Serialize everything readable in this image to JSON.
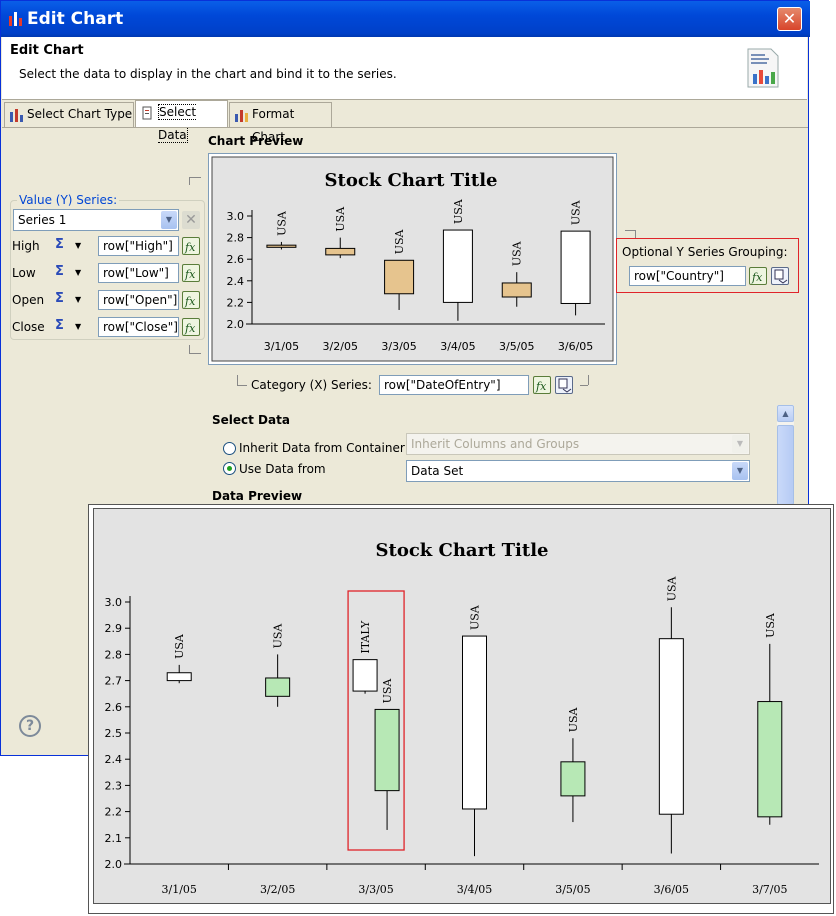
{
  "window": {
    "title": "Edit Chart",
    "close_glyph": "✕"
  },
  "header": {
    "title": "Edit Chart",
    "description": "Select the data to display in the chart and bind it to the series."
  },
  "tabs": [
    {
      "label": "Select Chart Type",
      "icon": "bar-chart-icon"
    },
    {
      "label": "Select Data",
      "icon": "data-icon"
    },
    {
      "label": "Format Chart",
      "icon": "format-chart-icon"
    }
  ],
  "chart_preview": {
    "label": "Chart Preview"
  },
  "value_series": {
    "label": "Value (Y) Series:",
    "selected": "Series 1",
    "rows": [
      {
        "label": "High",
        "value": "row[\"High\"]"
      },
      {
        "label": "Low",
        "value": "row[\"Low\"]"
      },
      {
        "label": "Open",
        "value": "row[\"Open\"]"
      },
      {
        "label": "Close",
        "value": "row[\"Close\"]"
      }
    ]
  },
  "grouping": {
    "label": "Optional Y Series Grouping:",
    "value": "row[\"Country\"]"
  },
  "category": {
    "label": "Category (X) Series:",
    "value": "row[\"DateOfEntry\"]"
  },
  "select_data": {
    "label": "Select Data",
    "inherit_label": "Inherit Data from Container",
    "inherit_value": "Inherit Columns and Groups",
    "use_label": "Use Data from",
    "use_value": "Data Set"
  },
  "data_preview": {
    "label": "Data Preview"
  },
  "help_glyph": "?",
  "chart_data": [
    {
      "type": "stock",
      "title": "Stock Chart Title",
      "y_ticks": [
        "3.0",
        "2.8",
        "2.6",
        "2.4",
        "2.2",
        "2.0"
      ],
      "ylim": [
        2.0,
        3.0
      ],
      "candles": [
        {
          "x": "3/1/05",
          "label": "USA",
          "high": 2.76,
          "low": 2.69,
          "open": 2.73,
          "close": 2.71
        },
        {
          "x": "3/2/05",
          "label": "USA",
          "high": 2.8,
          "low": 2.61,
          "open": 2.7,
          "close": 2.64
        },
        {
          "x": "3/3/05",
          "label": "USA",
          "high": 2.59,
          "low": 2.13,
          "open": 2.59,
          "close": 2.28
        },
        {
          "x": "3/4/05",
          "label": "USA",
          "high": 2.87,
          "low": 2.03,
          "open": 2.2,
          "close": 2.87
        },
        {
          "x": "3/5/05",
          "label": "USA",
          "high": 2.48,
          "low": 2.16,
          "open": 2.38,
          "close": 2.25
        },
        {
          "x": "3/6/05",
          "label": "USA",
          "high": 2.86,
          "low": 2.08,
          "open": 2.19,
          "close": 2.86
        }
      ]
    },
    {
      "type": "stock",
      "title": "Stock Chart Title",
      "y_ticks": [
        "3.0",
        "2.9",
        "2.8",
        "2.7",
        "2.6",
        "2.5",
        "2.4",
        "2.3",
        "2.2",
        "2.1",
        "2.0"
      ],
      "ylim": [
        2.0,
        3.0
      ],
      "categories": [
        "3/1/05",
        "3/2/05",
        "3/3/05",
        "3/4/05",
        "3/5/05",
        "3/6/05",
        "3/7/05"
      ],
      "candles": [
        {
          "x": "3/1/05",
          "label": "USA",
          "high": 2.76,
          "low": 2.69,
          "open": 2.7,
          "close": 2.73
        },
        {
          "x": "3/2/05",
          "label": "USA",
          "high": 2.8,
          "low": 2.6,
          "open": 2.71,
          "close": 2.64
        },
        {
          "x": "3/3/05",
          "label": "ITALY",
          "high": 2.78,
          "low": 2.65,
          "open": 2.66,
          "close": 2.78,
          "sub": -1
        },
        {
          "x": "3/3/05",
          "label": "USA",
          "high": 2.59,
          "low": 2.13,
          "open": 2.59,
          "close": 2.28,
          "sub": 1
        },
        {
          "x": "3/4/05",
          "label": "USA",
          "high": 2.87,
          "low": 2.03,
          "open": 2.21,
          "close": 2.87
        },
        {
          "x": "3/5/05",
          "label": "USA",
          "high": 2.48,
          "low": 2.16,
          "open": 2.39,
          "close": 2.26
        },
        {
          "x": "3/6/05",
          "label": "USA",
          "high": 2.98,
          "low": 2.04,
          "open": 2.19,
          "close": 2.86
        },
        {
          "x": "3/7/05",
          "label": "USA",
          "high": 2.84,
          "low": 2.15,
          "open": 2.62,
          "close": 2.18
        }
      ],
      "highlight": "3/3/05"
    }
  ],
  "colors": {
    "rising": "#ffffff",
    "falling_small": "#e6c48e",
    "falling_large": "#b7e8b5",
    "highlight": "#e0242a"
  }
}
